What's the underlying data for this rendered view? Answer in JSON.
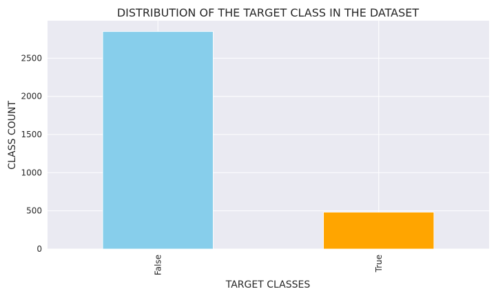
{
  "chart_data": {
    "type": "bar",
    "title": "DISTRIBUTION OF THE TARGET CLASS IN THE DATASET",
    "xlabel": "TARGET CLASSES",
    "ylabel": "CLASS COUNT",
    "categories": [
      "False",
      "True"
    ],
    "values": [
      2850,
      483
    ],
    "colors": [
      "#87ceeb",
      "#ffa500"
    ],
    "ylim": [
      0,
      2992
    ],
    "yticks": [
      0,
      500,
      1000,
      1500,
      2000,
      2500
    ],
    "grid": true,
    "background": "#eaeaf2"
  }
}
